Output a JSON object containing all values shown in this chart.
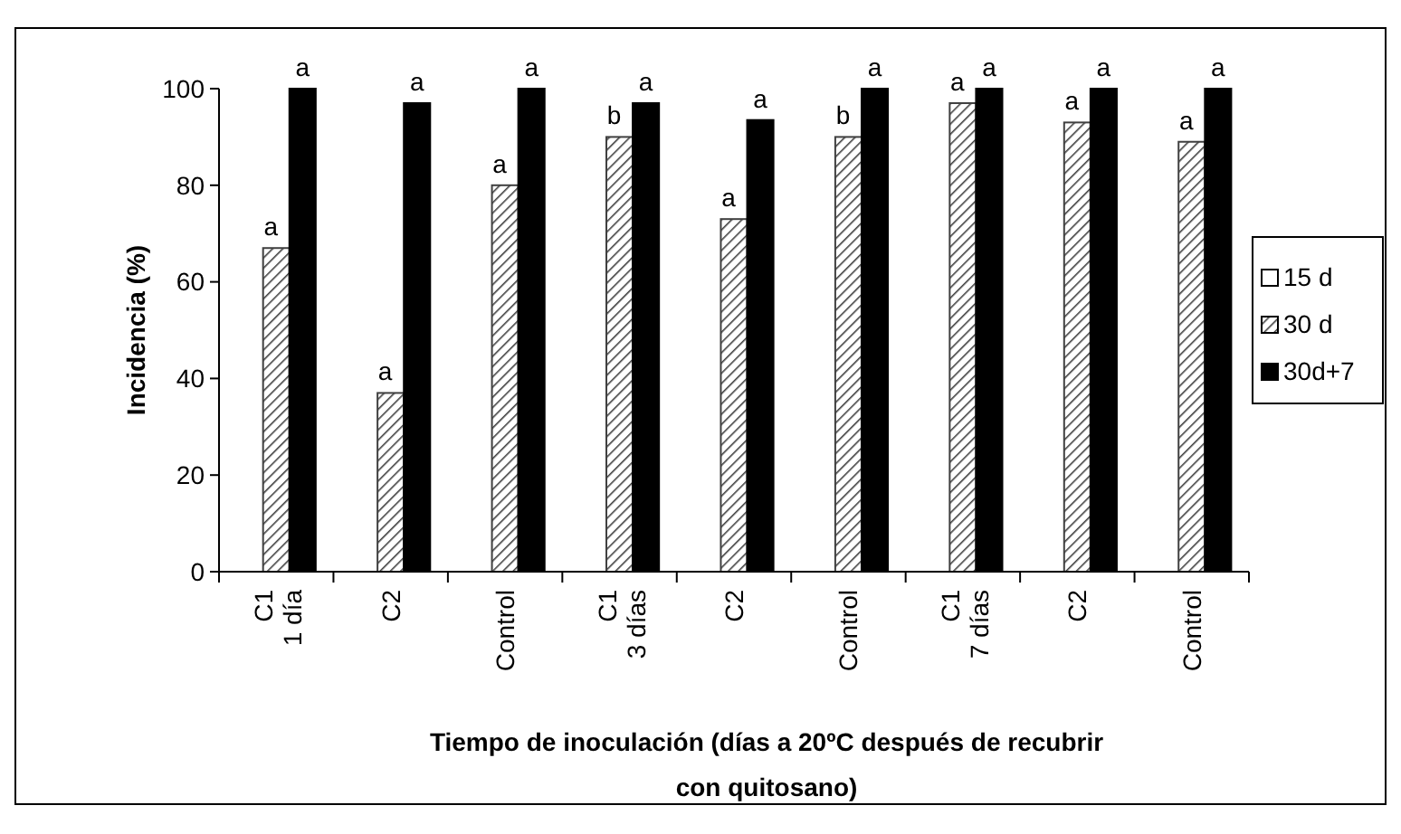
{
  "chart_data": {
    "type": "bar",
    "ylabel": "Incidencia (%)",
    "xlabel": "Tiempo de inoculación (días a 20ºC después de recubrir con quitosano)",
    "categories": [
      "C1\n1 día",
      "C2",
      "Control",
      "C1\n3 días",
      "C2",
      "Control",
      "C1\n7 días",
      "C2",
      "Control"
    ],
    "series": [
      {
        "name": "15 d",
        "color": "#ffffff",
        "values": [
          0,
          0,
          0,
          0,
          0,
          0,
          0,
          0,
          0
        ]
      },
      {
        "name": "30 d",
        "color": "#404040",
        "values": [
          67,
          37,
          80,
          90,
          73,
          90,
          97,
          93,
          89
        ],
        "value_labels": [
          "a",
          "a",
          "a",
          "b",
          "a",
          "b",
          "a",
          "a",
          "a"
        ]
      },
      {
        "name": "30d+7",
        "color": "#000000",
        "values": [
          100,
          97,
          100,
          97,
          93.5,
          100,
          100,
          100,
          100
        ],
        "value_labels": [
          "a",
          "a",
          "a",
          "a",
          "a",
          "a",
          "a",
          "a",
          "a"
        ]
      }
    ],
    "ylim": [
      0,
      100
    ],
    "yticks": [
      0,
      20,
      40,
      60,
      80,
      100
    ],
    "grid": false,
    "legend": "right"
  }
}
